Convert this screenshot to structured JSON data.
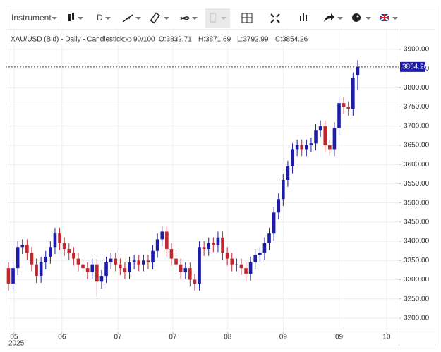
{
  "toolbar": {
    "instrument": "Instrument",
    "period": "D"
  },
  "chart_data": {
    "type": "candlestick",
    "legend": {
      "symbol": "XAU/USD (Bid) - Daily - Candlestick",
      "count": "90/100",
      "open": "O:3832.71",
      "high": "H:3871.69",
      "low": "L:3792.99",
      "close": "C:3854.26"
    },
    "up_color": "#1c1ca8",
    "down_color": "#c1272d",
    "last_price": 3854.26,
    "year_label": "2025",
    "xlim": [
      -0.6,
      83.8
    ],
    "xticks": [
      {
        "value": 1.2,
        "label": "05"
      },
      {
        "value": 11.5,
        "label": "06"
      },
      {
        "value": 23.5,
        "label": "07"
      },
      {
        "value": 35.3,
        "label": "07"
      },
      {
        "value": 47.1,
        "label": "08"
      },
      {
        "value": 59,
        "label": "09"
      },
      {
        "value": 71,
        "label": "09"
      },
      {
        "value": 81.2,
        "label": "10"
      }
    ],
    "ylim": [
      3165,
      3955
    ],
    "yticks": [
      {
        "value": 3200,
        "label": "3200.00"
      },
      {
        "value": 3250,
        "label": "3250.00"
      },
      {
        "value": 3300,
        "label": "3300.00"
      },
      {
        "value": 3350,
        "label": "3350.00"
      },
      {
        "value": 3400,
        "label": "3400.00"
      },
      {
        "value": 3450,
        "label": "3450.00"
      },
      {
        "value": 3500,
        "label": "3500.00"
      },
      {
        "value": 3550,
        "label": "3550.00"
      },
      {
        "value": 3600,
        "label": "3600.00"
      },
      {
        "value": 3650,
        "label": "3650.00"
      },
      {
        "value": 3700,
        "label": "3700.00"
      },
      {
        "value": 3750,
        "label": "3750.00"
      },
      {
        "value": 3800,
        "label": "3800.00"
      },
      {
        "value": 3850,
        "label": "3850.00"
      },
      {
        "value": 3900,
        "label": "3900.00"
      }
    ],
    "grid": true,
    "open": [
      3330,
      3290,
      3330,
      3385,
      3390,
      3370,
      3340,
      3310,
      3345,
      3360,
      3385,
      3420,
      3395,
      3380,
      3370,
      3355,
      3340,
      3330,
      3320,
      3340,
      3295,
      3310,
      3345,
      3355,
      3340,
      3330,
      3320,
      3345,
      3350,
      3340,
      3350,
      3345,
      3375,
      3405,
      3425,
      3380,
      3355,
      3340,
      3320,
      3330,
      3300,
      3290,
      3385,
      3380,
      3395,
      3390,
      3410,
      3370,
      3355,
      3340,
      3340,
      3330,
      3315,
      3345,
      3365,
      3370,
      3395,
      3420,
      3475,
      3510,
      3560,
      3595,
      3640,
      3650,
      3640,
      3650,
      3655,
      3690,
      3700,
      3650,
      3640,
      3695,
      3760,
      3750,
      3745,
      3832.71
    ],
    "high": [
      3345,
      3345,
      3400,
      3405,
      3405,
      3385,
      3355,
      3360,
      3375,
      3400,
      3435,
      3435,
      3410,
      3395,
      3385,
      3370,
      3355,
      3345,
      3355,
      3355,
      3325,
      3360,
      3370,
      3370,
      3355,
      3345,
      3360,
      3365,
      3365,
      3365,
      3365,
      3390,
      3420,
      3440,
      3440,
      3395,
      3370,
      3355,
      3345,
      3345,
      3315,
      3400,
      3400,
      3410,
      3410,
      3425,
      3425,
      3385,
      3370,
      3355,
      3355,
      3345,
      3360,
      3380,
      3385,
      3410,
      3435,
      3490,
      3525,
      3575,
      3610,
      3655,
      3665,
      3665,
      3665,
      3670,
      3705,
      3715,
      3715,
      3665,
      3710,
      3775,
      3775,
      3765,
      3840,
      3871.69
    ],
    "low": [
      3272,
      3272,
      3312,
      3367,
      3352,
      3322,
      3292,
      3292,
      3327,
      3342,
      3367,
      3377,
      3362,
      3352,
      3337,
      3322,
      3312,
      3302,
      3302,
      3255,
      3277,
      3292,
      3327,
      3322,
      3312,
      3302,
      3302,
      3327,
      3322,
      3322,
      3327,
      3327,
      3357,
      3387,
      3362,
      3337,
      3322,
      3302,
      3302,
      3282,
      3272,
      3272,
      3362,
      3362,
      3372,
      3372,
      3352,
      3337,
      3322,
      3322,
      3312,
      3297,
      3297,
      3327,
      3347,
      3352,
      3377,
      3402,
      3457,
      3492,
      3542,
      3577,
      3622,
      3622,
      3622,
      3632,
      3637,
      3672,
      3632,
      3622,
      3622,
      3677,
      3732,
      3727,
      3727,
      3792.99
    ],
    "close": [
      3290,
      3330,
      3385,
      3390,
      3370,
      3340,
      3310,
      3345,
      3360,
      3385,
      3420,
      3395,
      3380,
      3370,
      3355,
      3340,
      3330,
      3320,
      3340,
      3295,
      3310,
      3345,
      3355,
      3340,
      3330,
      3320,
      3345,
      3350,
      3340,
      3350,
      3345,
      3375,
      3405,
      3425,
      3380,
      3355,
      3340,
      3320,
      3330,
      3300,
      3290,
      3385,
      3380,
      3395,
      3390,
      3410,
      3370,
      3355,
      3340,
      3340,
      3330,
      3315,
      3345,
      3365,
      3370,
      3395,
      3420,
      3475,
      3510,
      3560,
      3595,
      3640,
      3650,
      3640,
      3650,
      3655,
      3690,
      3700,
      3650,
      3640,
      3695,
      3760,
      3750,
      3745,
      3825,
      3854.26
    ]
  }
}
